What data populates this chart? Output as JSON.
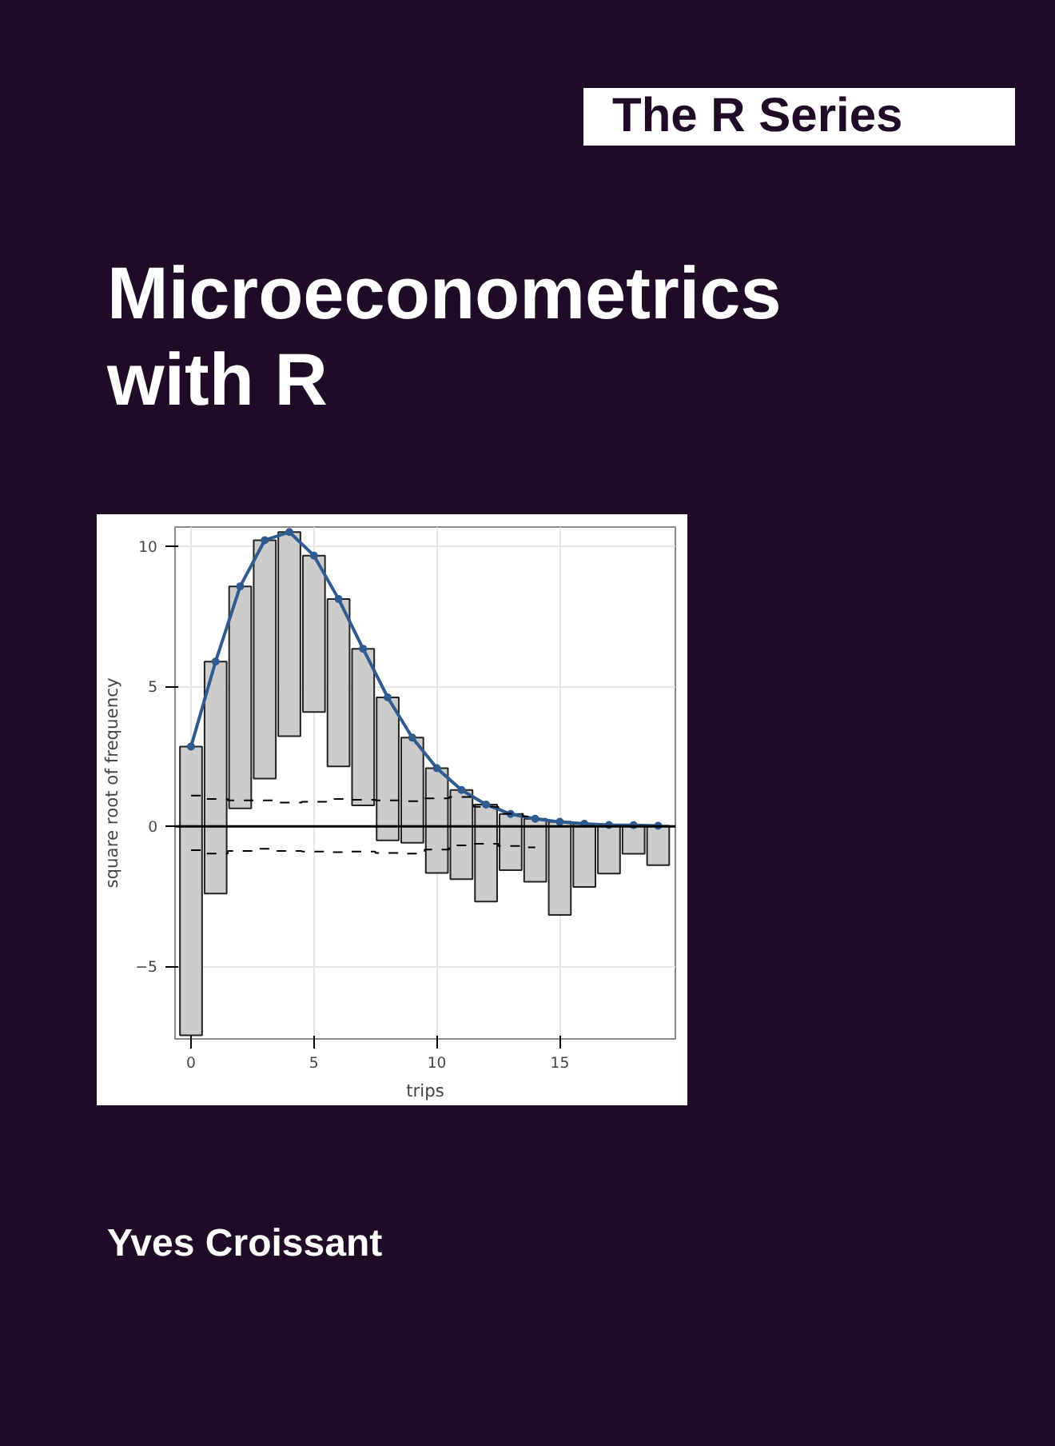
{
  "chart_data": {
    "type": "bar",
    "title": "Microeconometrics with R",
    "subtitle": "The R Series",
    "annotations": [
      "Yves Croissant"
    ],
    "xlabel": "trips",
    "ylabel": "square root of frequency",
    "x": [
      0,
      1,
      2,
      3,
      4,
      5,
      6,
      7,
      8,
      9,
      10,
      11,
      12,
      13,
      14,
      15,
      16,
      17,
      18,
      19
    ],
    "series": [
      {
        "color": "#cccccc",
        "base": [
          -7.47,
          -2.4,
          0.64,
          1.71,
          3.22,
          4.09,
          2.14,
          0.75,
          -0.5,
          -0.59,
          -1.67,
          -1.89,
          -2.69,
          -1.57,
          -1.98,
          -3.17,
          -2.17,
          -1.69,
          -0.98,
          -1.39
        ],
        "values": [
          10.32,
          8.29,
          7.94,
          8.52,
          7.3,
          5.59,
          5.99,
          5.6,
          5.11,
          3.76,
          3.75,
          3.19,
          3.47,
          2.01,
          2.25,
          3.33,
          2.26,
          1.74,
          1.02,
          1.41
        ]
      },
      {
        "type": "line",
        "color": "#2f5b8f",
        "marker": "circle",
        "values": [
          2.85,
          5.89,
          8.58,
          10.23,
          10.52,
          9.68,
          8.13,
          6.35,
          4.61,
          3.17,
          2.08,
          1.3,
          0.78,
          0.44,
          0.27,
          0.16,
          0.09,
          0.05,
          0.04,
          0.02
        ]
      },
      {
        "type": "step",
        "color": "#000000",
        "line_style": "dashed",
        "x": [
          0,
          1,
          2,
          3,
          4,
          5,
          6,
          7,
          8,
          9,
          10,
          11,
          12,
          13,
          14
        ],
        "values": [
          1.1,
          0.98,
          0.93,
          0.93,
          0.85,
          0.88,
          0.98,
          0.95,
          0.93,
          0.9,
          1.0,
          1.05,
          0.7,
          0.45,
          0.35
        ]
      },
      {
        "type": "step",
        "color": "#000000",
        "line_style": "dashed",
        "x": [
          0,
          1,
          2,
          3,
          4,
          5,
          6,
          7,
          8,
          9,
          10,
          11,
          12,
          13,
          14
        ],
        "values": [
          -0.85,
          -0.97,
          -0.88,
          -0.8,
          -0.88,
          -0.9,
          -0.92,
          -0.9,
          -0.95,
          -0.97,
          -0.83,
          -0.68,
          -0.62,
          -0.7,
          -0.75
        ]
      }
    ],
    "xlim": [
      -0.65,
      19.7
    ],
    "ylim": [
      -7.6,
      10.7
    ],
    "xticks": [
      0,
      5,
      10,
      15
    ],
    "yticks": [
      -5,
      0,
      5,
      10
    ],
    "grid": true,
    "ref_lines": [
      {
        "axis": "y",
        "value": 0,
        "color": "#000000"
      }
    ]
  }
}
